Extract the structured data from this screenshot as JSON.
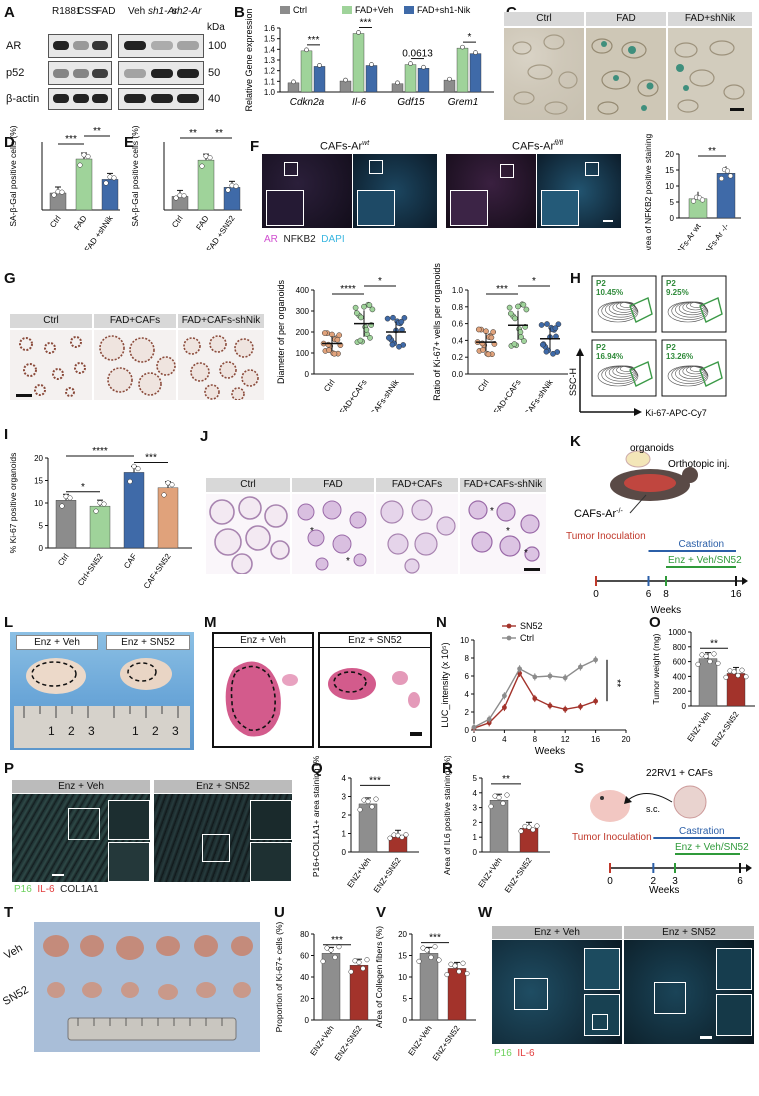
{
  "panels": {
    "A": {
      "label": "A",
      "lanes_left": [
        "R1881",
        "CSS",
        "FAD"
      ],
      "lanes_right": [
        "Veh",
        "sh1-Ar",
        "sh2-Ar"
      ],
      "proteins": [
        "AR",
        "p52",
        "β-actin"
      ],
      "kda_header": "kDa",
      "kda": [
        "100",
        "50",
        "40"
      ]
    },
    "B": {
      "label": "B",
      "legend": [
        "Ctrl",
        "FAD+Veh",
        "FAD+sh1-Nik"
      ],
      "ylabel": "Relative Gene expression",
      "genes": [
        "Cdkn2a",
        "Il-6",
        "Gdf15",
        "Grem1"
      ],
      "sig": [
        "***",
        "***",
        "0.0613",
        "*"
      ],
      "yticks": [
        "1.0",
        "1.1",
        "1.2",
        "1.3",
        "1.4",
        "1.5",
        "1.6"
      ]
    },
    "C": {
      "label": "C",
      "headers": [
        "Ctrl",
        "FAD",
        "FAD+shNik"
      ]
    },
    "D": {
      "label": "D",
      "ylabel": "SA-β-Gal positive cells (%)",
      "categories": [
        "Ctrl",
        "FAD",
        "FAD +shNik"
      ],
      "sig": [
        "***",
        "**"
      ]
    },
    "E": {
      "label": "E",
      "ylabel": "SA-β-Gal positive cells (%)",
      "categories": [
        "Ctrl",
        "FAD",
        "FAD +SN52"
      ],
      "sig": [
        "**",
        "**"
      ]
    },
    "F": {
      "label": "F",
      "titles": [
        "CAFs-Ar",
        "CAFs-Ar"
      ],
      "title_sup": [
        "wt",
        "fl/fl"
      ],
      "legend": [
        "AR",
        "NFKB2",
        "DAPI"
      ],
      "ylabel": "Area of NFKB2 positive staining (%)",
      "categories": [
        "CAFs-Ar",
        "CAFs-Ar"
      ],
      "cat_sup": [
        "wt",
        "-/-"
      ],
      "sig": "**",
      "yticks": [
        "0",
        "5",
        "10",
        "15",
        "20"
      ]
    },
    "G": {
      "label": "G",
      "headers": [
        "Ctrl",
        "FAD+CAFs",
        "FAD+CAFs-shNik"
      ],
      "plot1_ylabel": "Diameter of per organoids",
      "plot1_yticks": [
        "0",
        "100",
        "200",
        "300",
        "400"
      ],
      "plot1_sig": [
        "****",
        "*"
      ],
      "plot2_ylabel": "Ratio of Ki-67+ vells per organoids",
      "plot2_yticks": [
        "0.0",
        "0.2",
        "0.4",
        "0.6",
        "0.8",
        "1.0"
      ],
      "plot2_sig": [
        "***",
        "*"
      ],
      "categories": [
        "Ctrl",
        "FAD+CAFs",
        "FAD+CAFs-shNik"
      ]
    },
    "H": {
      "label": "H",
      "gates": [
        "P2",
        "P2",
        "P2",
        "P2"
      ],
      "percents": [
        "10.45%",
        "9.25%",
        "16.94%",
        "13.26%"
      ],
      "ylabel": "SSC-H",
      "xlabel": "Ki-67-APC-Cy7"
    },
    "I": {
      "label": "I",
      "ylabel": "% Ki-67 positive organoids",
      "categories": [
        "Ctrl",
        "Ctrl+SN52",
        "CAF",
        "CAF+SN52"
      ],
      "sig": [
        "*",
        "****",
        "***"
      ],
      "yticks": [
        "0",
        "5",
        "10",
        "15",
        "20"
      ]
    },
    "J": {
      "label": "J",
      "headers": [
        "Ctrl",
        "FAD",
        "FAD+CAFs",
        "FAD+CAFs-shNik"
      ]
    },
    "K": {
      "label": "K",
      "organoids": "organoids",
      "orthotopic": "Orthotopic inj.",
      "cafs": "CAFs-Ar",
      "cafs_sup": "-/-",
      "tumor": "Tumor Inoculation",
      "castration": "Castration",
      "treatment": "Enz + Veh/SN52",
      "ticks": [
        "0",
        "6",
        "8",
        "16"
      ],
      "xlabel": "Weeks"
    },
    "L": {
      "label": "L",
      "headers": [
        "Enz + Veh",
        "Enz + SN52"
      ],
      "ruler": [
        "1",
        "2",
        "3"
      ]
    },
    "M": {
      "label": "M",
      "headers": [
        "Enz + Veh",
        "Enz + SN52"
      ]
    },
    "N": {
      "label": "N",
      "legend": [
        "SN52",
        "Ctrl"
      ],
      "ylabel": "LUC_intensity (x 10⁵)",
      "xlabel": "Weeks",
      "xticks": [
        "0",
        "4",
        "8",
        "12",
        "16",
        "20"
      ],
      "yticks": [
        "0",
        "2",
        "4",
        "6",
        "8",
        "10"
      ],
      "sig": "**"
    },
    "O": {
      "label": "O",
      "ylabel": "Tumor weight (mg)",
      "categories": [
        "ENZ+Veh",
        "ENZ+SN52"
      ],
      "sig": "**",
      "yticks": [
        "0",
        "200",
        "400",
        "600",
        "800",
        "1000"
      ]
    },
    "P": {
      "label": "P",
      "headers": [
        "Enz + Veh",
        "Enz + SN52"
      ],
      "legend": [
        "P16",
        "IL-6",
        "COL1A1"
      ]
    },
    "Q": {
      "label": "Q",
      "ylabel": "P16+COL1A1+ area staining (%)",
      "categories": [
        "ENZ+Veh",
        "ENZ+SN52"
      ],
      "sig": "***",
      "yticks": [
        "0",
        "1",
        "2",
        "3",
        "4"
      ]
    },
    "R": {
      "label": "R",
      "ylabel": "Area of IL6 positive staining (%)",
      "categories": [
        "ENZ+Veh",
        "ENZ+SN52"
      ],
      "sig": "**",
      "yticks": [
        "0",
        "1",
        "2",
        "3",
        "4",
        "5"
      ]
    },
    "S": {
      "label": "S",
      "cells": "22RV1 + CAFs",
      "route": "s.c.",
      "tumor": "Tumor Inoculation",
      "castration": "Castration",
      "treatment": "Enz + Veh/SN52",
      "ticks": [
        "0",
        "2",
        "3",
        "6"
      ],
      "xlabel": "Weeks"
    },
    "T": {
      "label": "T",
      "rows": [
        "Veh",
        "SN52"
      ]
    },
    "U": {
      "label": "U",
      "ylabel": "Proportion of Ki-67+ cells (%)",
      "categories": [
        "ENZ+Veh",
        "ENZ+SN52"
      ],
      "sig": "***",
      "yticks": [
        "0",
        "20",
        "40",
        "60",
        "80"
      ]
    },
    "V": {
      "label": "V",
      "ylabel": "Area of Collegen fibers (%)",
      "categories": [
        "ENZ+Veh",
        "ENZ+SN52"
      ],
      "sig": "***",
      "yticks": [
        "0",
        "5",
        "10",
        "15",
        "20"
      ]
    },
    "W": {
      "label": "W",
      "headers": [
        "Enz + Veh",
        "Enz + SN52"
      ],
      "legend": [
        "P16",
        "IL-6"
      ]
    }
  },
  "colors": {
    "grey": "#8c8c8c",
    "green": "#9fd39a",
    "green_dark": "#6fb56a",
    "blue": "#3f6aa8",
    "orange": "#e0a27b",
    "red": "#a3332b",
    "magenta": "#d04fd0",
    "cyan": "#39b6e0"
  },
  "chart_data": [
    {
      "id": "B",
      "type": "bar",
      "categories": [
        "Cdkn2a",
        "Il-6",
        "Gdf15",
        "Grem1"
      ],
      "series": [
        {
          "name": "Ctrl",
          "values": [
            1.0,
            1.02,
            0.99,
            1.03
          ]
        },
        {
          "name": "FAD+Veh",
          "values": [
            1.35,
            1.54,
            1.2,
            1.38
          ]
        },
        {
          "name": "FAD+sh1-Nik",
          "values": [
            1.18,
            1.19,
            1.16,
            1.32
          ]
        }
      ],
      "ylabel": "Relative Gene expression",
      "ylim": [
        0.9,
        1.6
      ]
    },
    {
      "id": "D",
      "type": "bar",
      "categories": [
        "Ctrl",
        "FAD",
        "FAD +shNik"
      ],
      "values": [
        0.15,
        0.45,
        0.27
      ],
      "ylabel": "SA-β-Gal positive cells (%)"
    },
    {
      "id": "E",
      "type": "bar",
      "categories": [
        "Ctrl",
        "FAD",
        "FAD +SN52"
      ],
      "values": [
        0.12,
        0.44,
        0.2
      ],
      "ylabel": "SA-β-Gal positive cells (%)"
    },
    {
      "id": "F",
      "type": "bar",
      "categories": [
        "CAFs-Ar wt",
        "CAFs-Ar -/-"
      ],
      "values": [
        6.0,
        14.0
      ],
      "ylabel": "Area of NFKB2 positive staining (%)",
      "ylim": [
        0,
        20
      ]
    },
    {
      "id": "G1",
      "type": "scatter",
      "categories": [
        "Ctrl",
        "FAD+CAFs",
        "FAD+CAFs-shNik"
      ],
      "means": [
        145,
        240,
        200
      ],
      "ylabel": "Diameter of per organoids",
      "ylim": [
        0,
        400
      ]
    },
    {
      "id": "G2",
      "type": "scatter",
      "categories": [
        "Ctrl",
        "FAD+CAFs",
        "FAD+CAFs-shNik"
      ],
      "means": [
        0.38,
        0.58,
        0.42
      ],
      "ylabel": "Ratio of Ki-67+ vells per organoids",
      "ylim": [
        0,
        1.0
      ]
    },
    {
      "id": "I",
      "type": "bar",
      "categories": [
        "Ctrl",
        "Ctrl+SN52",
        "CAF",
        "CAF+SN52"
      ],
      "values": [
        10.6,
        9.3,
        16.8,
        13.4
      ],
      "ylabel": "% Ki-67 positive organoids",
      "ylim": [
        0,
        20
      ]
    },
    {
      "id": "N",
      "type": "line",
      "x": [
        0,
        2,
        4,
        6,
        8,
        10,
        12,
        14,
        16
      ],
      "series": [
        {
          "name": "SN52",
          "values": [
            0.2,
            0.8,
            2.5,
            6.3,
            3.5,
            2.7,
            2.3,
            2.6,
            3.2
          ]
        },
        {
          "name": "Ctrl",
          "values": [
            0.3,
            1.2,
            3.8,
            6.8,
            5.9,
            6.0,
            5.8,
            7.0,
            7.8
          ]
        }
      ],
      "xlabel": "Weeks",
      "ylabel": "LUC_intensity (x 10⁵)",
      "xlim": [
        0,
        20
      ],
      "ylim": [
        0,
        10
      ]
    },
    {
      "id": "O",
      "type": "bar",
      "categories": [
        "ENZ+Veh",
        "ENZ+SN52"
      ],
      "values": [
        640,
        440
      ],
      "ylabel": "Tumor weight (mg)",
      "ylim": [
        0,
        1000
      ]
    },
    {
      "id": "Q",
      "type": "bar",
      "categories": [
        "ENZ+Veh",
        "ENZ+SN52"
      ],
      "values": [
        2.6,
        0.85
      ],
      "ylabel": "P16+COL1A1+ area staining (%)",
      "ylim": [
        0,
        4
      ]
    },
    {
      "id": "R",
      "type": "bar",
      "categories": [
        "ENZ+Veh",
        "ENZ+SN52"
      ],
      "values": [
        3.5,
        1.6
      ],
      "ylabel": "Area of IL6 positive staining (%)",
      "ylim": [
        0,
        5
      ]
    },
    {
      "id": "U",
      "type": "bar",
      "categories": [
        "ENZ+Veh",
        "ENZ+SN52"
      ],
      "values": [
        62,
        51
      ],
      "ylabel": "Proportion of Ki-67+ cells (%)",
      "ylim": [
        0,
        80
      ]
    },
    {
      "id": "V",
      "type": "bar",
      "categories": [
        "ENZ+Veh",
        "ENZ+SN52"
      ],
      "values": [
        15.5,
        12.0
      ],
      "ylabel": "Area of Collegen fibers (%)",
      "ylim": [
        0,
        20
      ]
    }
  ]
}
